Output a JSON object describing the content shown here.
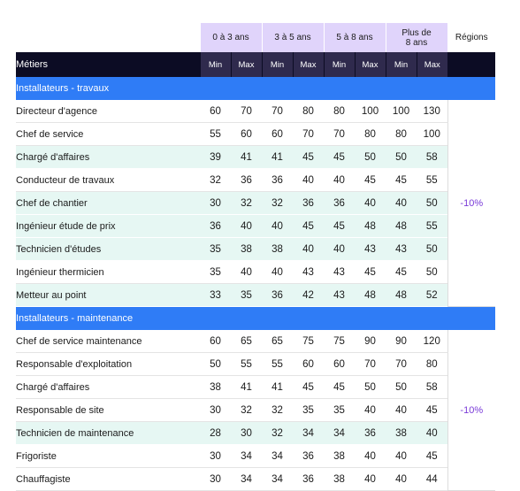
{
  "header": {
    "groups": [
      "0 à 3 ans",
      "3 à 5 ans",
      "5 à 8 ans",
      "Plus de\n8 ans"
    ],
    "regions_label": "Régions",
    "metiers_label": "Métiers",
    "min_label": "Min",
    "max_label": "Max"
  },
  "colors": {
    "group_header_bg": "#e0d4fb",
    "dark_header_bg": "#0c0c24",
    "section_bg": "#2f7cf6",
    "alt_row_bg": "#e6f7f3",
    "region_text": "#7a3bd8"
  },
  "sections": [
    {
      "title": "Installateurs - travaux",
      "region": "-10%",
      "rows": [
        {
          "name": "Directeur d'agence",
          "values": [
            60,
            70,
            70,
            80,
            80,
            100,
            100,
            130
          ],
          "alt": false
        },
        {
          "name": "Chef de service",
          "values": [
            55,
            60,
            60,
            70,
            70,
            80,
            80,
            100
          ],
          "alt": false
        },
        {
          "name": "Chargé d'affaires",
          "values": [
            39,
            41,
            41,
            45,
            45,
            50,
            50,
            58
          ],
          "alt": true
        },
        {
          "name": "Conducteur de travaux",
          "values": [
            32,
            36,
            36,
            40,
            40,
            45,
            45,
            55
          ],
          "alt": false
        },
        {
          "name": "Chef de chantier",
          "values": [
            30,
            32,
            32,
            36,
            36,
            40,
            40,
            50
          ],
          "alt": true
        },
        {
          "name": "Ingénieur étude de prix",
          "values": [
            36,
            40,
            40,
            45,
            45,
            48,
            48,
            55
          ],
          "alt": true
        },
        {
          "name": "Technicien d'études",
          "values": [
            35,
            38,
            38,
            40,
            40,
            43,
            43,
            50
          ],
          "alt": true
        },
        {
          "name": "Ingénieur thermicien",
          "values": [
            35,
            40,
            40,
            43,
            43,
            45,
            45,
            50
          ],
          "alt": false
        },
        {
          "name": "Metteur au point",
          "values": [
            33,
            35,
            36,
            42,
            43,
            48,
            48,
            52
          ],
          "alt": true
        }
      ]
    },
    {
      "title": "Installateurs - maintenance",
      "region": "-10%",
      "rows": [
        {
          "name": "Chef de service maintenance",
          "values": [
            60,
            65,
            65,
            75,
            75,
            90,
            90,
            120
          ],
          "alt": false
        },
        {
          "name": "Responsable d'exploitation",
          "values": [
            50,
            55,
            55,
            60,
            60,
            70,
            70,
            80
          ],
          "alt": false
        },
        {
          "name": "Chargé d'affaires",
          "values": [
            38,
            41,
            41,
            45,
            45,
            50,
            50,
            58
          ],
          "alt": false
        },
        {
          "name": "Responsable de site",
          "values": [
            30,
            32,
            32,
            35,
            35,
            40,
            40,
            45
          ],
          "alt": false
        },
        {
          "name": "Technicien de maintenance",
          "values": [
            28,
            30,
            32,
            34,
            34,
            36,
            38,
            40
          ],
          "alt": true
        },
        {
          "name": "Frigoriste",
          "values": [
            30,
            34,
            34,
            36,
            38,
            40,
            40,
            45
          ],
          "alt": false
        },
        {
          "name": "Chauffagiste",
          "values": [
            30,
            34,
            34,
            36,
            38,
            40,
            40,
            44
          ],
          "alt": false
        }
      ]
    }
  ]
}
